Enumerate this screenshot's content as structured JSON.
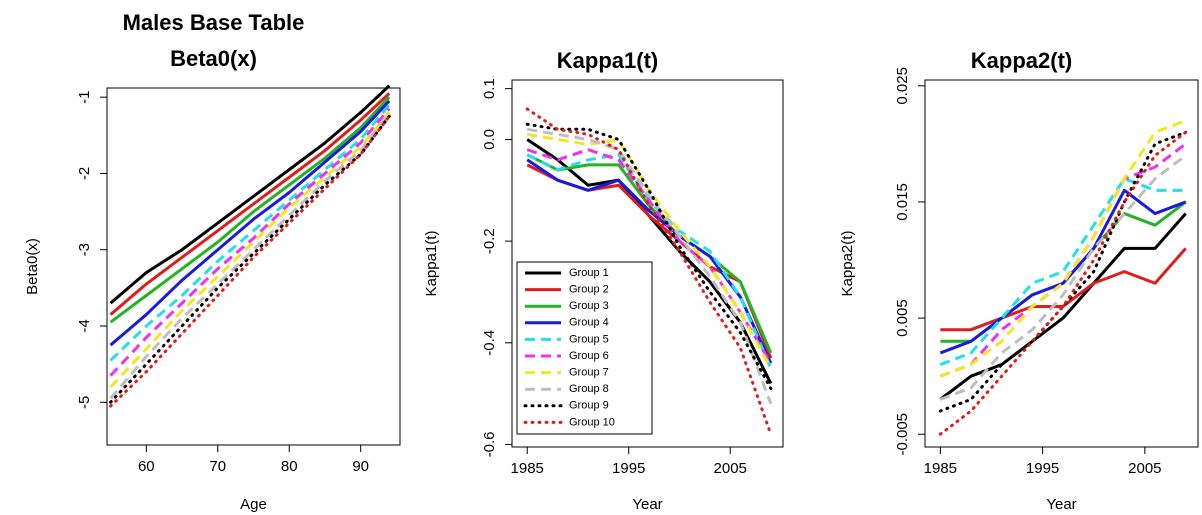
{
  "chart_data": [
    {
      "type": "line",
      "title": "Males Base Table",
      "subtitle": "Beta0(x)",
      "x_label": "Age",
      "y_label": "Beta0(x)",
      "x": [
        55,
        60,
        65,
        70,
        75,
        80,
        85,
        90,
        94
      ],
      "xlim": [
        54.5,
        95.5
      ],
      "ylim": [
        -5.56,
        -0.88
      ],
      "xticks": [
        60,
        70,
        80,
        90
      ],
      "yticks": [
        -5,
        -4,
        -3,
        -2,
        -1
      ],
      "series": [
        {
          "color": "#000000",
          "dash": "solid",
          "values": [
            -3.7,
            -3.3,
            -3.0,
            -2.65,
            -2.3,
            -1.95,
            -1.6,
            -1.2,
            -0.85
          ]
        },
        {
          "color": "#df1d1d",
          "dash": "solid",
          "values": [
            -3.85,
            -3.45,
            -3.1,
            -2.75,
            -2.4,
            -2.05,
            -1.7,
            -1.3,
            -0.95
          ]
        },
        {
          "color": "#22b422",
          "dash": "solid",
          "values": [
            -3.95,
            -3.6,
            -3.25,
            -2.9,
            -2.5,
            -2.15,
            -1.8,
            -1.4,
            -1.0
          ]
        },
        {
          "color": "#1a1ae0",
          "dash": "solid",
          "values": [
            -4.25,
            -3.85,
            -3.4,
            -3.0,
            -2.6,
            -2.25,
            -1.85,
            -1.45,
            -1.05
          ]
        },
        {
          "color": "#22e0e8",
          "dash": "dashed",
          "values": [
            -4.45,
            -4.0,
            -3.6,
            -3.15,
            -2.75,
            -2.35,
            -1.95,
            -1.55,
            -1.1
          ]
        },
        {
          "color": "#f030f0",
          "dash": "dashed",
          "values": [
            -4.65,
            -4.15,
            -3.7,
            -3.25,
            -2.85,
            -2.4,
            -2.0,
            -1.6,
            -1.15
          ]
        },
        {
          "color": "#f5e620",
          "dash": "dashed",
          "values": [
            -4.8,
            -4.3,
            -3.8,
            -3.35,
            -2.9,
            -2.45,
            -2.05,
            -1.65,
            -1.2
          ]
        },
        {
          "color": "#bebebe",
          "dash": "dashed",
          "values": [
            -4.95,
            -4.4,
            -3.9,
            -3.45,
            -3.0,
            -2.55,
            -2.1,
            -1.7,
            -1.2
          ]
        },
        {
          "color": "#000000",
          "dash": "dotted",
          "values": [
            -5.0,
            -4.5,
            -4.0,
            -3.5,
            -3.05,
            -2.6,
            -2.15,
            -1.75,
            -1.25
          ]
        },
        {
          "color": "#df1d1d",
          "dash": "dotted",
          "values": [
            -5.05,
            -4.6,
            -4.1,
            -3.6,
            -3.1,
            -2.65,
            -2.2,
            -1.75,
            -1.25
          ]
        }
      ]
    },
    {
      "type": "line",
      "title": "Kappa1(t)",
      "x_label": "Year",
      "y_label": "Kappa1(t)",
      "x": [
        1985,
        1988,
        1991,
        1994,
        1997,
        2000,
        2003,
        2006,
        2009
      ],
      "xlim": [
        1983.5,
        2010.2
      ],
      "ylim": [
        -0.605,
        0.117
      ],
      "xticks": [
        1985,
        1995,
        2005
      ],
      "yticks": [
        -0.6,
        -0.4,
        -0.2,
        {
          "value": 0,
          "label": "0.0"
        },
        0.1
      ],
      "legend": "bottom-left",
      "series": [
        {
          "name": "Group 1",
          "color": "#000000",
          "dash": "solid",
          "values": [
            0.0,
            -0.04,
            -0.09,
            -0.08,
            -0.15,
            -0.22,
            -0.28,
            -0.36,
            -0.48
          ]
        },
        {
          "name": "Group 2",
          "color": "#df1d1d",
          "dash": "solid",
          "values": [
            -0.05,
            -0.08,
            -0.1,
            -0.09,
            -0.15,
            -0.2,
            -0.25,
            -0.28,
            -0.43
          ]
        },
        {
          "name": "Group 3",
          "color": "#22b422",
          "dash": "solid",
          "values": [
            -0.03,
            -0.06,
            -0.05,
            -0.05,
            -0.13,
            -0.19,
            -0.23,
            -0.28,
            -0.42
          ]
        },
        {
          "name": "Group 4",
          "color": "#1a1ae0",
          "dash": "solid",
          "values": [
            -0.04,
            -0.08,
            -0.1,
            -0.08,
            -0.14,
            -0.19,
            -0.23,
            -0.31,
            -0.44
          ]
        },
        {
          "name": "Group 5",
          "color": "#22e0e8",
          "dash": "dashed",
          "values": [
            -0.03,
            -0.06,
            -0.04,
            -0.03,
            -0.12,
            -0.18,
            -0.22,
            -0.31,
            -0.45
          ]
        },
        {
          "name": "Group 6",
          "color": "#f030f0",
          "dash": "dashed",
          "values": [
            -0.02,
            -0.04,
            -0.02,
            -0.04,
            -0.12,
            -0.2,
            -0.25,
            -0.34,
            -0.44
          ]
        },
        {
          "name": "Group 7",
          "color": "#f5e620",
          "dash": "dashed",
          "values": [
            0.01,
            0.0,
            -0.01,
            0.0,
            -0.1,
            -0.18,
            -0.25,
            -0.34,
            -0.45
          ]
        },
        {
          "name": "Group 8",
          "color": "#bebebe",
          "dash": "dashed",
          "values": [
            0.02,
            0.01,
            0.0,
            -0.02,
            -0.11,
            -0.19,
            -0.27,
            -0.36,
            -0.52
          ]
        },
        {
          "name": "Group 9",
          "color": "#000000",
          "dash": "dotted",
          "values": [
            0.03,
            0.02,
            0.02,
            0.0,
            -0.1,
            -0.21,
            -0.3,
            -0.38,
            -0.49
          ]
        },
        {
          "name": "Group 10",
          "color": "#df1d1d",
          "dash": "dotted",
          "values": [
            0.06,
            0.02,
            0.01,
            -0.02,
            -0.13,
            -0.22,
            -0.32,
            -0.41,
            -0.58
          ]
        }
      ]
    },
    {
      "type": "line",
      "title": "Kappa2(t)",
      "x_label": "Year",
      "y_label": "Kappa2(t)",
      "x": [
        1985,
        1988,
        1991,
        1994,
        1997,
        2000,
        2003,
        2006,
        2009
      ],
      "xlim": [
        1983.5,
        2010.2
      ],
      "ylim": [
        -0.0061,
        0.0255
      ],
      "xticks": [
        1985,
        1995,
        2005
      ],
      "yticks": [
        -0.005,
        0.005,
        0.015,
        0.025
      ],
      "series": [
        {
          "color": "#000000",
          "dash": "solid",
          "values": [
            -0.002,
            0.0,
            0.001,
            0.003,
            0.005,
            0.008,
            0.011,
            0.011,
            0.014
          ]
        },
        {
          "color": "#df1d1d",
          "dash": "solid",
          "values": [
            0.004,
            0.004,
            0.005,
            0.006,
            0.006,
            0.008,
            0.009,
            0.008,
            0.011
          ]
        },
        {
          "color": "#22b422",
          "dash": "solid",
          "values": [
            0.003,
            0.003,
            0.005,
            0.007,
            0.008,
            0.011,
            0.014,
            0.013,
            0.015
          ]
        },
        {
          "color": "#1a1ae0",
          "dash": "solid",
          "values": [
            0.002,
            0.003,
            0.005,
            0.007,
            0.008,
            0.011,
            0.016,
            0.014,
            0.015
          ]
        },
        {
          "color": "#22e0e8",
          "dash": "dashed",
          "values": [
            0.001,
            0.002,
            0.005,
            0.008,
            0.009,
            0.013,
            0.017,
            0.016,
            0.016
          ]
        },
        {
          "color": "#f030f0",
          "dash": "dashed",
          "values": [
            0.0,
            0.001,
            0.004,
            0.006,
            0.008,
            0.012,
            0.017,
            0.018,
            0.02
          ]
        },
        {
          "color": "#f5e620",
          "dash": "dashed",
          "values": [
            0.0,
            0.001,
            0.003,
            0.006,
            0.008,
            0.012,
            0.017,
            0.021,
            0.022
          ]
        },
        {
          "color": "#bebebe",
          "dash": "dashed",
          "values": [
            -0.002,
            -0.001,
            0.002,
            0.004,
            0.007,
            0.011,
            0.014,
            0.017,
            0.019
          ]
        },
        {
          "color": "#000000",
          "dash": "dotted",
          "values": [
            -0.003,
            -0.002,
            0.001,
            0.003,
            0.006,
            0.009,
            0.015,
            0.02,
            0.021
          ]
        },
        {
          "color": "#df1d1d",
          "dash": "dotted",
          "values": [
            -0.005,
            -0.003,
            0.0,
            0.003,
            0.006,
            0.01,
            0.015,
            0.019,
            0.021
          ]
        }
      ]
    }
  ]
}
